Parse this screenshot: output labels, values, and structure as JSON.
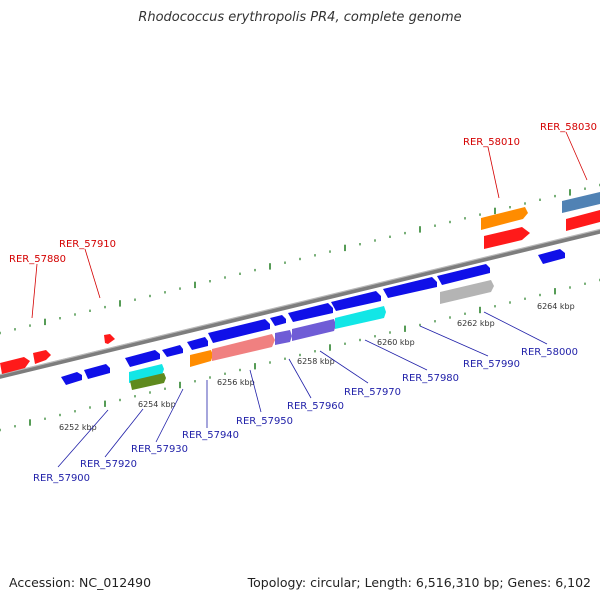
{
  "title": "Rhodococcus erythropolis PR4, complete genome",
  "footer": {
    "accession": "Accession: NC_012490",
    "summary": "Topology: circular; Length: 6,516,310 bp; Genes: 6,102"
  },
  "colors": {
    "backbone": "#808080",
    "tick": "#1e7a1e",
    "top_label": "#d40000",
    "bottom_label": "#1f1fa8",
    "red": "#ff1a1a",
    "blue": "#1010e8",
    "orange": "#ff8c00",
    "steel": "#5082b4",
    "salmon": "#f08080",
    "slate": "#6f5cd6",
    "cyan": "#12e6e6",
    "olive": "#5f8a1e",
    "gray": "#b4b4b4"
  },
  "scale": {
    "ticks": [
      {
        "label": "6252 kbp"
      },
      {
        "label": "6254 kbp"
      },
      {
        "label": "6256 kbp"
      },
      {
        "label": "6258 kbp"
      },
      {
        "label": "6260 kbp"
      },
      {
        "label": "6262 kbp"
      },
      {
        "label": "6264 kbp"
      }
    ]
  },
  "top_labels": [
    "RER_57880",
    "RER_57910",
    "RER_58010",
    "RER_58030"
  ],
  "bottom_labels": [
    "RER_57900",
    "RER_57920",
    "RER_57930",
    "RER_57940",
    "RER_57950",
    "RER_57960",
    "RER_57970",
    "RER_57980",
    "RER_57990",
    "RER_58000"
  ]
}
